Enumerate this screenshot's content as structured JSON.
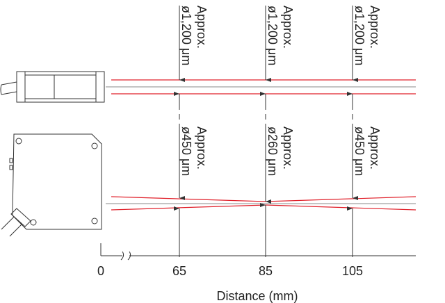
{
  "top_labels": [
    {
      "line1": "Approx.",
      "line2": "ø1,200 μm"
    },
    {
      "line1": "Approx.",
      "line2": "ø1,200 μm"
    },
    {
      "line1": "Approx.",
      "line2": "ø1,200 μm"
    }
  ],
  "bottom_labels": [
    {
      "line1": "Approx.",
      "line2": "ø450 μm"
    },
    {
      "line1": "Approx.",
      "line2": "ø260 μm"
    },
    {
      "line1": "Approx.",
      "line2": "ø450 μm"
    }
  ],
  "axis": {
    "ticks": [
      "0",
      "65",
      "85",
      "105"
    ],
    "title": "Distance (mm)"
  }
}
